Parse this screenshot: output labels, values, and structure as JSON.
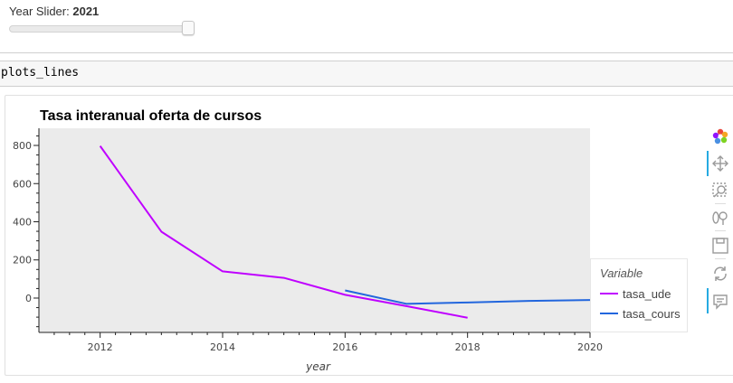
{
  "widget": {
    "slider_label": "Year Slider:",
    "slider_value": "2021",
    "slider_fraction": 1.0
  },
  "cell": {
    "code": "plots_lines"
  },
  "chart_data": {
    "type": "line",
    "title": "Tasa interanual oferta de cursos",
    "xlabel": "year",
    "ylabel": "",
    "xlim": [
      2011.0,
      2020.0
    ],
    "ylim": [
      -180,
      890
    ],
    "x_ticks": [
      2012,
      2014,
      2016,
      2018,
      2020
    ],
    "x_tick_labels": [
      "2012",
      "2014",
      "2016",
      "2018",
      "2020"
    ],
    "y_ticks": [
      0,
      200,
      400,
      600,
      800
    ],
    "y_tick_labels": [
      "0",
      "200",
      "400",
      "600",
      "800"
    ],
    "legend_title": "Variable",
    "legend_position": "right",
    "grid": false,
    "background": "#ebebeb",
    "series": [
      {
        "name": "tasa_ude",
        "color": "#bf00ff",
        "x": [
          2012,
          2013,
          2014,
          2015,
          2016,
          2017,
          2018
        ],
        "y": [
          797,
          348,
          140,
          106,
          17,
          -42,
          -103
        ]
      },
      {
        "name": "tasa_cours",
        "color": "#2266dd",
        "x": [
          2016,
          2017,
          2018,
          2019,
          2020
        ],
        "y": [
          40,
          -30,
          -23,
          -15,
          -10
        ]
      }
    ]
  },
  "toolbar": {
    "tools": [
      {
        "name": "bokeh-logo-icon",
        "active": false
      },
      {
        "name": "pan-icon",
        "active": true
      },
      {
        "name": "box-zoom-icon",
        "active": false
      },
      {
        "name": "wheel-zoom-icon",
        "active": false
      },
      {
        "name": "save-icon",
        "active": false
      },
      {
        "name": "reset-icon",
        "active": false
      },
      {
        "name": "hover-icon",
        "active": true
      }
    ]
  }
}
